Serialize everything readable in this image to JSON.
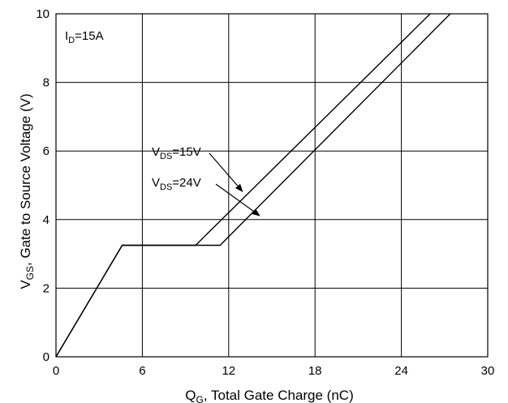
{
  "chart_data": {
    "type": "line",
    "x_axis": {
      "label_main": "Q",
      "label_sub": "G",
      "label_rest": ", Total Gate Charge (nC)",
      "range": [
        0,
        30
      ],
      "ticks": [
        0,
        6,
        12,
        18,
        24,
        30
      ],
      "tick_labels": [
        "0",
        "6",
        "12",
        "18",
        "24",
        "30"
      ]
    },
    "y_axis": {
      "label_main": "V",
      "label_sub": "GS",
      "label_rest": ", Gate to Source Voltage (V)",
      "range": [
        0,
        10
      ],
      "ticks": [
        0,
        2,
        4,
        6,
        8,
        10
      ],
      "tick_labels": [
        "0",
        "2",
        "4",
        "6",
        "8",
        "10"
      ]
    },
    "grid": true,
    "condition": {
      "main": "I",
      "sub": "D",
      "rest": "=15A"
    },
    "series": [
      {
        "name": "V_DS=15V",
        "points": [
          [
            0,
            0
          ],
          [
            4.6,
            3.25
          ],
          [
            9.7,
            3.25
          ],
          [
            26.0,
            10.0
          ]
        ]
      },
      {
        "name": "V_DS=24V",
        "points": [
          [
            0,
            0
          ],
          [
            4.6,
            3.25
          ],
          [
            11.4,
            3.25
          ],
          [
            27.4,
            10.0
          ]
        ]
      }
    ],
    "annotations": [
      {
        "main": "V",
        "sub": "DS",
        "rest": "=15V",
        "target_series": 0,
        "target_x": 13.0,
        "target_y": 4.8
      },
      {
        "main": "V",
        "sub": "DS",
        "rest": "=24V",
        "target_series": 1,
        "target_x": 14.2,
        "target_y": 4.1
      }
    ]
  }
}
